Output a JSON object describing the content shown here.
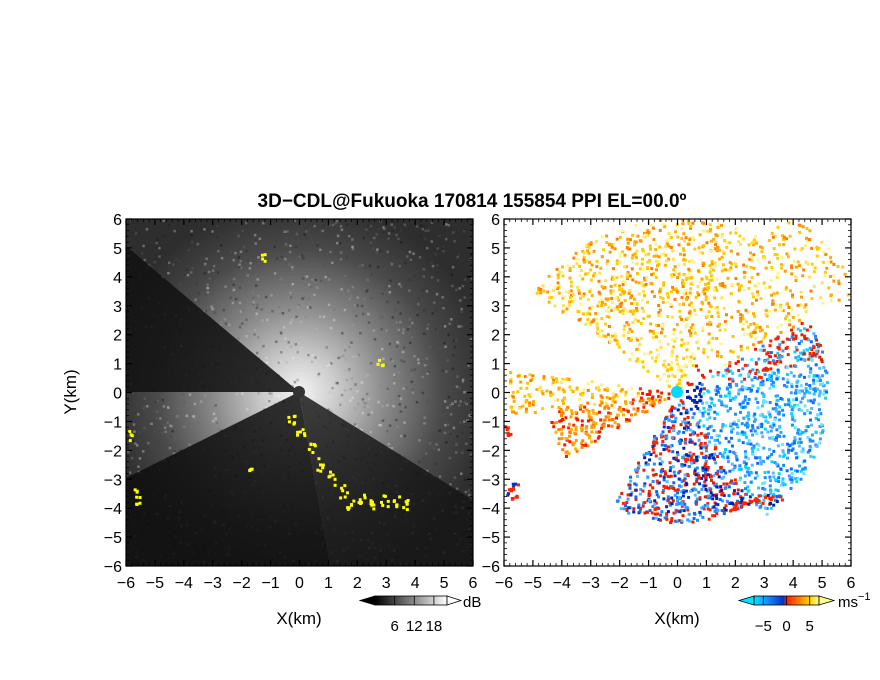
{
  "title": "3D−CDL@Fukuoka 170814 155854 PPI EL=00.0º",
  "chart_data": [
    {
      "type": "heatmap",
      "panel": "left",
      "xlabel": "X(km)",
      "ylabel": "Y(km)",
      "xlim": [
        -6,
        6
      ],
      "ylim": [
        -6,
        6
      ],
      "xticks": [
        "−6",
        "−5",
        "−4",
        "−3",
        "−2",
        "−1",
        "0",
        "1",
        "2",
        "3",
        "4",
        "5",
        "6"
      ],
      "yticks": [
        "6",
        "5",
        "4",
        "3",
        "2",
        "1",
        "0",
        "−1",
        "−2",
        "−3",
        "−4",
        "−5",
        "−6"
      ],
      "colorbar": {
        "unit": "dB",
        "ticks": [
          "6",
          "12",
          "18"
        ],
        "range": [
          0,
          22
        ],
        "colors": [
          "#000000",
          "#ffffff"
        ]
      },
      "mask_color": "#ffff00"
    },
    {
      "type": "heatmap",
      "panel": "right",
      "xlabel": "X(km)",
      "ylabel": "",
      "xlim": [
        -6,
        6
      ],
      "ylim": [
        -6,
        6
      ],
      "xticks": [
        "−6",
        "−5",
        "−4",
        "−3",
        "−2",
        "−1",
        "0",
        "1",
        "2",
        "3",
        "4",
        "5",
        "6"
      ],
      "yticks": [
        "6",
        "5",
        "4",
        "3",
        "2",
        "1",
        "0",
        "−1",
        "−2",
        "−3",
        "−4",
        "−5",
        "−6"
      ],
      "colorbar": {
        "unit": "ms",
        "unit_exp": "−1",
        "ticks": [
          "−5",
          "0",
          "5"
        ],
        "range": [
          -7,
          7
        ],
        "colors": [
          "#00e5ff",
          "#1a8cff",
          "#0033cc",
          "#ff2200",
          "#ff7f00",
          "#ffd000",
          "#ffff88"
        ]
      }
    }
  ]
}
